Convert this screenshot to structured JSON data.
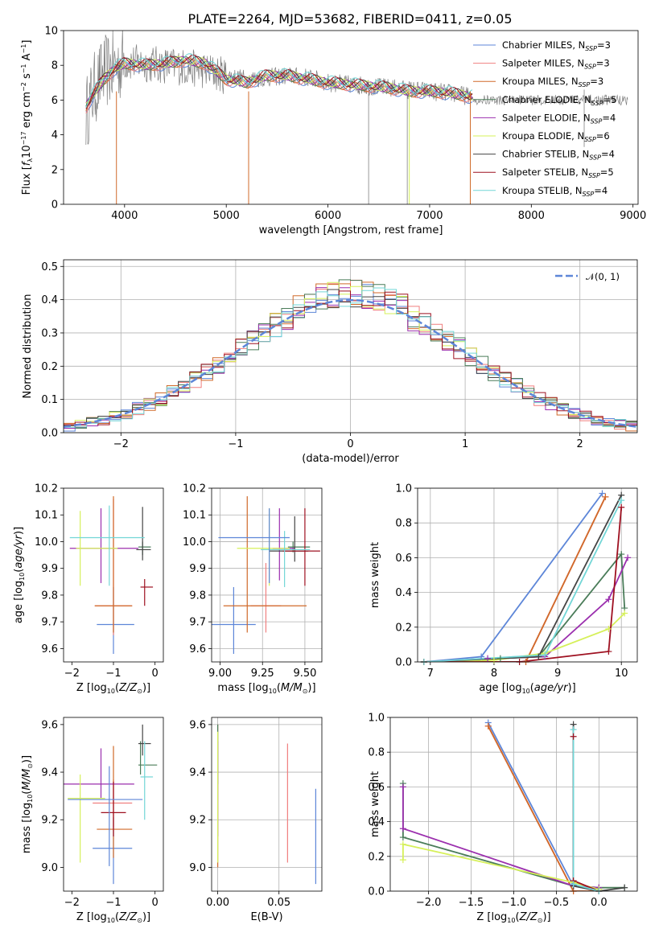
{
  "title": "PLATE=2264, MJD=53682, FIBERID=0411, z=0.05",
  "colors": [
    "#5d86d8",
    "#f07f7f",
    "#d06a2a",
    "#4a7c59",
    "#9b2fae",
    "#d6f05a",
    "#444444",
    "#9e1020",
    "#72d6d6"
  ],
  "chart_data": [
    {
      "id": "spectrum",
      "type": "line",
      "xlabel": "wavelength [Angstrom, rest frame]",
      "ylabel": "Flux [f_λ 10^-17 erg cm^-2 s^-1 A^-1]",
      "xlim": [
        3400,
        9050
      ],
      "ylim": [
        0,
        10
      ],
      "xticks": [
        4000,
        5000,
        6000,
        7000,
        8000,
        9000
      ],
      "yticks": [
        0,
        2,
        4,
        6,
        8,
        10
      ],
      "grid": false,
      "legend": "upper-right",
      "legend_entries": [
        "Chabrier MILES, N_SSP=3",
        "Salpeter MILES, N_SSP=3",
        "Kroupa MILES, N_SSP=3",
        "Chabrier ELODIE, N_SSP=5",
        "Salpeter ELODIE, N_SSP=4",
        "Kroupa ELODIE, N_SSP=6",
        "Chabrier STELIB, N_SSP=4",
        "Salpeter STELIB, N_SSP=5",
        "Kroupa STELIB, N_SSP=4"
      ],
      "data_series": {
        "name": "data",
        "x": [
          3620,
          3700,
          3800,
          3900,
          4000,
          4200,
          4400,
          4600,
          4800,
          5000,
          5200,
          5400,
          5600,
          5800,
          6000,
          6200,
          6400,
          6600,
          6800,
          7000,
          7200,
          7400
        ],
        "y": [
          5.2,
          6.6,
          7.6,
          7.9,
          8.2,
          8.1,
          8.0,
          7.9,
          7.7,
          7.4,
          7.2,
          7.3,
          7.4,
          7.3,
          7.0,
          6.9,
          6.8,
          6.7,
          6.6,
          6.5,
          6.4,
          6.2
        ]
      },
      "model_series": {
        "x": [
          3620,
          3700,
          3800,
          3900,
          4000,
          4200,
          4400,
          4600,
          4800,
          5000,
          5200,
          5400,
          5600,
          5800,
          6000,
          6200,
          6400,
          6600,
          6800,
          7000,
          7200,
          7400
        ],
        "y": [
          5.6,
          6.4,
          7.2,
          7.8,
          8.1,
          8.0,
          8.1,
          8.3,
          8.1,
          7.2,
          7.0,
          7.4,
          7.4,
          7.2,
          7.0,
          6.9,
          6.8,
          6.7,
          6.5,
          6.5,
          6.4,
          6.2
        ]
      }
    },
    {
      "id": "residuals",
      "type": "histogram",
      "xlabel": "(data-model)/error",
      "ylabel": "Normed distribution",
      "xlim": [
        -2.5,
        2.5
      ],
      "ylim": [
        0,
        0.52
      ],
      "xticks": [
        -2,
        -1,
        0,
        1,
        2
      ],
      "yticks": [
        0.0,
        0.1,
        0.2,
        0.3,
        0.4,
        0.5
      ],
      "grid": true,
      "legend": "upper-right",
      "legend_entries": [
        "N(0,1)"
      ],
      "bin_width": 0.1,
      "reference": "normal(0,1)"
    },
    {
      "id": "age-vs-Z",
      "type": "errorbar",
      "xlabel": "Z [log10(Z/Z⊙)]",
      "ylabel": "age [log10(age/yr)]",
      "xlim": [
        -2.2,
        0.2
      ],
      "ylim": [
        9.55,
        10.2
      ],
      "xticks": [
        -2,
        -1,
        0
      ],
      "yticks": [
        9.6,
        9.7,
        9.8,
        9.9,
        10.0,
        10.1,
        10.2
      ],
      "grid": false,
      "points": [
        {
          "x": -1.0,
          "xerr": [
            0.4,
            0.5
          ],
          "y": 9.69,
          "yerr": [
            0.11,
            0.14
          ]
        },
        {
          "x": -1.0,
          "xerr": [
            0.45,
            0.45
          ],
          "y": 9.76,
          "yerr": [
            0.11,
            0.4
          ]
        },
        {
          "x": -1.0,
          "xerr": [
            0.45,
            0.45
          ],
          "y": 9.76,
          "yerr": [
            0.1,
            0.41
          ]
        },
        {
          "x": -0.3,
          "xerr": [
            0.1,
            0.2
          ],
          "y": 9.98,
          "yerr": [
            0.03,
            0.02
          ]
        },
        {
          "x": -1.3,
          "xerr": [
            0.75,
            0.9
          ],
          "y": 9.975,
          "yerr": [
            0.13,
            0.15
          ]
        },
        {
          "x": -1.8,
          "xerr": [
            0.1,
            0.9
          ],
          "y": 9.975,
          "yerr": [
            0.14,
            0.14
          ]
        },
        {
          "x": -0.3,
          "xerr": [
            0.15,
            0.2
          ],
          "y": 9.97,
          "yerr": [
            0.04,
            0.16
          ]
        },
        {
          "x": -0.25,
          "xerr": [
            0.1,
            0.2
          ],
          "y": 9.83,
          "yerr": [
            0.07,
            0.03
          ]
        },
        {
          "x": -1.1,
          "xerr": [
            0.95,
            0.85
          ],
          "y": 10.015,
          "yerr": [
            0.18,
            0.12
          ]
        }
      ]
    },
    {
      "id": "age-vs-mass",
      "type": "errorbar",
      "xlabel": "mass [log10(M/M⊙)]",
      "ylabel": "",
      "xlim": [
        8.95,
        9.6
      ],
      "ylim": [
        9.55,
        10.2
      ],
      "xticks": [
        9.0,
        9.25,
        9.5
      ],
      "yticks": [
        9.6,
        9.7,
        9.8,
        9.9,
        10.0,
        10.1,
        10.2
      ],
      "grid": true,
      "points": [
        {
          "x": 9.08,
          "xerr": [
            0.13,
            0.13
          ],
          "y": 9.69,
          "yerr": [
            0.11,
            0.14
          ]
        },
        {
          "x": 9.27,
          "xerr": [
            0.09,
            0.09
          ],
          "y": 9.76,
          "yerr": [
            0.1,
            0.16
          ]
        },
        {
          "x": 9.16,
          "xerr": [
            0.14,
            0.35
          ],
          "y": 9.76,
          "yerr": [
            0.1,
            0.41
          ]
        },
        {
          "x": 9.43,
          "xerr": [
            0.03,
            0.1
          ],
          "y": 9.98,
          "yerr": [
            0.02,
            0.02
          ]
        },
        {
          "x": 9.35,
          "xerr": [
            0.04,
            0.09
          ],
          "y": 9.975,
          "yerr": [
            0.12,
            0.15
          ]
        },
        {
          "x": 9.29,
          "xerr": [
            0.19,
            0.12
          ],
          "y": 9.975,
          "yerr": [
            0.14,
            0.15
          ]
        },
        {
          "x": 9.44,
          "xerr": [
            0.15,
            0.08
          ],
          "y": 9.965,
          "yerr": [
            0.04,
            0.13
          ]
        },
        {
          "x": 9.5,
          "xerr": [
            0.13,
            0.09
          ],
          "y": 9.965,
          "yerr": [
            0.13,
            0.16
          ]
        },
        {
          "x": 9.38,
          "xerr": [
            0.14,
            0.15
          ],
          "y": 9.97,
          "yerr": [
            0.14,
            0.07
          ]
        },
        {
          "x": 9.29,
          "xerr": [
            0.3,
            0.12
          ],
          "y": 10.015,
          "yerr": [
            0.17,
            0.11
          ]
        }
      ]
    },
    {
      "id": "massweight-vs-age",
      "type": "line",
      "xlabel": "age [log10(age/yr)]",
      "ylabel": "mass weight",
      "xlim": [
        6.8,
        10.25
      ],
      "ylim": [
        0,
        1.0
      ],
      "xticks": [
        7,
        8,
        9,
        10
      ],
      "yticks": [
        0.0,
        0.2,
        0.4,
        0.6,
        0.8,
        1.0
      ],
      "grid": true,
      "series": [
        {
          "x": [
            6.9,
            7.8,
            9.7
          ],
          "y": [
            0.0,
            0.03,
            0.97
          ]
        },
        {
          "x": [
            6.9,
            8.5,
            9.75
          ],
          "y": [
            0.0,
            0.0,
            0.95
          ]
        },
        {
          "x": [
            6.9,
            8.5,
            9.75
          ],
          "y": [
            0.0,
            0.0,
            0.95
          ]
        },
        {
          "x": [
            6.9,
            8.1,
            8.7,
            10.0,
            10.05
          ],
          "y": [
            0.0,
            0.02,
            0.03,
            0.62,
            0.31
          ]
        },
        {
          "x": [
            6.9,
            7.9,
            8.8,
            9.8,
            10.1
          ],
          "y": [
            0.0,
            0.02,
            0.03,
            0.36,
            0.6
          ]
        },
        {
          "x": [
            6.9,
            8.0,
            8.8,
            9.8,
            10.05
          ],
          "y": [
            0.0,
            0.01,
            0.05,
            0.19,
            0.28
          ]
        },
        {
          "x": [
            6.9,
            8.7,
            10.0
          ],
          "y": [
            0.0,
            0.03,
            0.96
          ]
        },
        {
          "x": [
            6.9,
            8.4,
            9.8,
            10.0
          ],
          "y": [
            0.0,
            0.0,
            0.06,
            0.89
          ]
        },
        {
          "x": [
            6.9,
            8.8,
            10.0
          ],
          "y": [
            0.0,
            0.04,
            0.93
          ]
        }
      ]
    },
    {
      "id": "mass-vs-Z",
      "type": "errorbar",
      "xlabel": "Z [log10(Z/Z⊙)]",
      "ylabel": "mass [log10(M/M⊙)]",
      "xlim": [
        -2.2,
        0.2
      ],
      "ylim": [
        8.9,
        9.63
      ],
      "xticks": [
        -2,
        -1,
        0
      ],
      "yticks": [
        9.0,
        9.2,
        9.4,
        9.6
      ],
      "grid": false,
      "points": [
        {
          "x": -1.0,
          "xerr": [
            0.5,
            0.45
          ],
          "y": 9.08,
          "yerr": [
            0.15,
            0.13
          ]
        },
        {
          "x": -1.0,
          "xerr": [
            0.5,
            0.45
          ],
          "y": 9.27,
          "yerr": [
            0.1,
            0.1
          ]
        },
        {
          "x": -1.0,
          "xerr": [
            0.4,
            0.45
          ],
          "y": 9.16,
          "yerr": [
            0.12,
            0.35
          ]
        },
        {
          "x": -0.35,
          "xerr": [
            0.05,
            0.4
          ],
          "y": 9.43,
          "yerr": [
            0.04,
            0.1
          ]
        },
        {
          "x": -1.3,
          "xerr": [
            0.9,
            0.8
          ],
          "y": 9.35,
          "yerr": [
            0.06,
            0.15
          ]
        },
        {
          "x": -1.8,
          "xerr": [
            0.3,
            0.6
          ],
          "y": 9.29,
          "yerr": [
            0.27,
            0.1
          ]
        },
        {
          "x": -0.3,
          "xerr": [
            0.1,
            0.2
          ],
          "y": 9.52,
          "yerr": [
            0.05,
            0.08
          ]
        },
        {
          "x": -1.0,
          "xerr": [
            0.3,
            0.3
          ],
          "y": 9.23,
          "yerr": [
            0.1,
            0.13
          ]
        },
        {
          "x": -0.25,
          "xerr": [
            0.1,
            0.2
          ],
          "y": 9.38,
          "yerr": [
            0.18,
            0.15
          ]
        },
        {
          "x": -1.1,
          "xerr": [
            1.0,
            0.8
          ],
          "y": 9.285,
          "yerr": [
            0.28,
            0.14
          ]
        }
      ]
    },
    {
      "id": "mass-vs-EBV",
      "type": "errorbar",
      "xlabel": "E(B-V)",
      "ylabel": "",
      "xlim": [
        -0.005,
        0.085
      ],
      "ylim": [
        8.9,
        9.63
      ],
      "xticks": [
        0.0,
        0.05
      ],
      "yticks": [
        9.0,
        9.2,
        9.4,
        9.6
      ],
      "grid": true,
      "points": [
        {
          "x": 0.08,
          "y": 9.13,
          "yerr": [
            0.2,
            0.2
          ]
        },
        {
          "x": 0.057,
          "y": 9.27,
          "yerr": [
            0.25,
            0.25
          ]
        },
        {
          "x": 0.0,
          "y": 9.3,
          "yerr": [
            0.3,
            0.3
          ]
        },
        {
          "x": 0.0,
          "y": 9.45,
          "yerr": [
            0.1,
            0.15
          ]
        },
        {
          "x": 0.0,
          "y": 9.23,
          "yerr": [
            0.1,
            0.3
          ]
        },
        {
          "x": 0.0,
          "y": 9.3,
          "yerr": [
            0.28,
            0.27
          ]
        }
      ]
    },
    {
      "id": "massweight-vs-Z",
      "type": "line",
      "xlabel": "Z [log10(Z/Z⊙)]",
      "ylabel": "mass weight",
      "xlim": [
        -2.45,
        0.45
      ],
      "ylim": [
        0,
        1.0
      ],
      "xticks": [
        -2.0,
        -1.5,
        -1.0,
        -0.5,
        0.0
      ],
      "yticks": [
        0.0,
        0.2,
        0.4,
        0.6,
        0.8,
        1.0
      ],
      "grid": true,
      "series": [
        {
          "x": [
            -1.3,
            -0.3,
            0.0
          ],
          "y": [
            0.97,
            0.03,
            0.0
          ]
        },
        {
          "x": [
            -1.3,
            -0.3,
            0.0
          ],
          "y": [
            0.95,
            0.0,
            0.0
          ]
        },
        {
          "x": [
            -1.3,
            -0.3,
            0.0
          ],
          "y": [
            0.95,
            0.0,
            0.0
          ]
        },
        {
          "x": [
            -2.3,
            -2.3,
            -0.3,
            0.0,
            0.3
          ],
          "y": [
            0.62,
            0.31,
            0.03,
            0.02,
            0.02
          ]
        },
        {
          "x": [
            -2.3,
            -2.3,
            -0.3,
            0.0
          ],
          "y": [
            0.6,
            0.36,
            0.03,
            0.02
          ]
        },
        {
          "x": [
            -2.3,
            -2.3,
            -0.3,
            0.0
          ],
          "y": [
            0.18,
            0.27,
            0.05,
            0.01
          ]
        },
        {
          "x": [
            -0.3,
            -0.3,
            0.0,
            0.3
          ],
          "y": [
            0.96,
            0.03,
            0.0,
            0.02
          ]
        },
        {
          "x": [
            -0.3,
            -0.3,
            0.0
          ],
          "y": [
            0.89,
            0.06,
            0.0
          ]
        },
        {
          "x": [
            -0.3,
            -0.3,
            0.0
          ],
          "y": [
            0.93,
            0.04,
            0.0
          ]
        }
      ]
    }
  ]
}
